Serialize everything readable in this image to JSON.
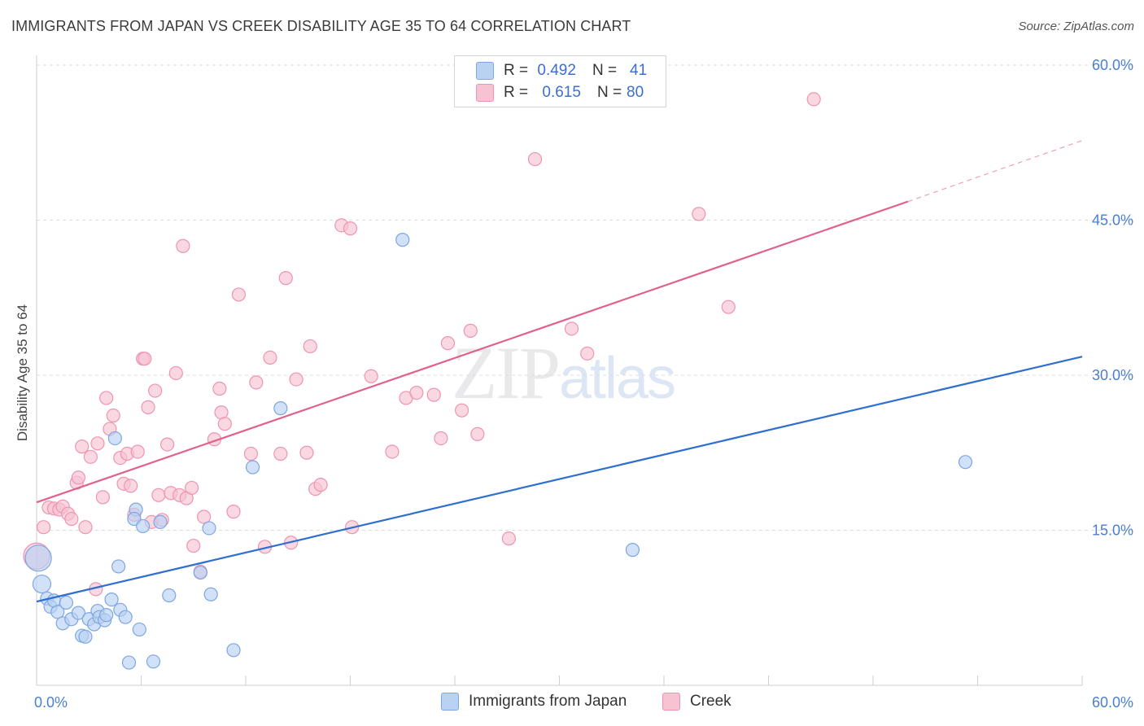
{
  "title": "IMMIGRANTS FROM JAPAN VS CREEK DISABILITY AGE 35 TO 64 CORRELATION CHART",
  "source": "Source: ZipAtlas.com",
  "watermark": {
    "zip": "ZIP",
    "atlas": "atlas"
  },
  "legend": {
    "rows": [
      {
        "r_label": "R =",
        "r_value": "0.492",
        "n_label": "N =",
        "n_value": "41"
      },
      {
        "r_label": "R =",
        "r_value": "0.615",
        "n_label": "N =",
        "n_value": "80"
      }
    ]
  },
  "bottom_legend": [
    {
      "label": "Immigrants from Japan"
    },
    {
      "label": "Creek"
    }
  ],
  "colors": {
    "japan_fill": "#b9d1f3",
    "japan_stroke": "#7ea6e0",
    "japan_line": "#2f6fd0",
    "creek_fill": "#f7c3d2",
    "creek_stroke": "#ee94b1",
    "creek_line": "#e0628c",
    "grid": "#dcdcdc",
    "tick_text": "#4a7fd0"
  },
  "chart_data": {
    "type": "scatter",
    "title": "IMMIGRANTS FROM JAPAN VS CREEK DISABILITY AGE 35 TO 64 CORRELATION CHART",
    "xlabel": "",
    "ylabel": "Disability Age 35 to 64",
    "xlim": [
      0,
      60
    ],
    "ylim": [
      0,
      60
    ],
    "x_tick_labels": [
      "0.0%",
      "60.0%"
    ],
    "y_tick_values": [
      15,
      30,
      45,
      60
    ],
    "y_tick_labels": [
      "15.0%",
      "30.0%",
      "45.0%",
      "60.0%"
    ],
    "series": [
      {
        "name": "Immigrants from Japan",
        "r": 0.492,
        "n": 41,
        "trend": {
          "x0": 0,
          "y0": 8.1,
          "x1": 60,
          "y1": 31.8
        },
        "points": [
          [
            0.1,
            12.3,
            3
          ],
          [
            0.3,
            9.8,
            2
          ],
          [
            0.6,
            8.4,
            1
          ],
          [
            0.8,
            7.6,
            1
          ],
          [
            1.0,
            8.2,
            1
          ],
          [
            1.2,
            7.1,
            1
          ],
          [
            1.5,
            6.0,
            1
          ],
          [
            1.7,
            8.0,
            1
          ],
          [
            2.0,
            6.4,
            1
          ],
          [
            2.4,
            7.0,
            1
          ],
          [
            2.6,
            4.8,
            1
          ],
          [
            2.8,
            4.7,
            1
          ],
          [
            3.0,
            6.4,
            1
          ],
          [
            3.3,
            5.9,
            1
          ],
          [
            3.5,
            7.2,
            1
          ],
          [
            3.6,
            6.6,
            1
          ],
          [
            3.9,
            6.3,
            1
          ],
          [
            4.0,
            6.8,
            1
          ],
          [
            4.3,
            8.3,
            1
          ],
          [
            4.5,
            23.9,
            1
          ],
          [
            4.7,
            11.5,
            1
          ],
          [
            4.8,
            7.3,
            1
          ],
          [
            5.1,
            6.6,
            1
          ],
          [
            5.3,
            2.2,
            1
          ],
          [
            5.7,
            17.0,
            1
          ],
          [
            5.6,
            16.1,
            1
          ],
          [
            5.9,
            5.4,
            1
          ],
          [
            6.1,
            15.4,
            1
          ],
          [
            6.7,
            2.3,
            1
          ],
          [
            7.1,
            15.8,
            1
          ],
          [
            7.6,
            8.7,
            1
          ],
          [
            9.4,
            10.9,
            1
          ],
          [
            9.9,
            15.2,
            1
          ],
          [
            10.0,
            8.8,
            1
          ],
          [
            11.3,
            3.4,
            1
          ],
          [
            12.4,
            21.1,
            1
          ],
          [
            14.0,
            26.8,
            1
          ],
          [
            21.0,
            43.1,
            1
          ],
          [
            34.2,
            13.1,
            1
          ],
          [
            53.3,
            21.6,
            1
          ]
        ]
      },
      {
        "name": "Creek",
        "r": 0.615,
        "n": 80,
        "trend": {
          "x0": 0,
          "y0": 17.7,
          "x1": 50,
          "y1": 46.8,
          "dash_x1": 60,
          "dash_y1": 52.7
        },
        "points": [
          [
            0.0,
            12.5,
            3
          ],
          [
            0.4,
            15.3,
            1
          ],
          [
            0.7,
            17.2,
            1
          ],
          [
            1.0,
            17.1,
            1
          ],
          [
            1.3,
            17.0,
            1
          ],
          [
            1.5,
            17.3,
            1
          ],
          [
            1.8,
            16.6,
            1
          ],
          [
            2.0,
            16.1,
            1
          ],
          [
            2.3,
            19.6,
            1
          ],
          [
            2.4,
            20.1,
            1
          ],
          [
            2.6,
            23.1,
            1
          ],
          [
            2.8,
            15.3,
            1
          ],
          [
            3.1,
            22.1,
            1
          ],
          [
            3.4,
            9.3,
            1
          ],
          [
            3.5,
            23.4,
            1
          ],
          [
            3.8,
            18.2,
            1
          ],
          [
            4.0,
            27.8,
            1
          ],
          [
            4.2,
            24.8,
            1
          ],
          [
            4.4,
            26.1,
            1
          ],
          [
            4.8,
            22.0,
            1
          ],
          [
            5.0,
            19.5,
            1
          ],
          [
            5.2,
            22.4,
            1
          ],
          [
            5.4,
            19.3,
            1
          ],
          [
            5.6,
            16.5,
            1
          ],
          [
            5.8,
            22.6,
            1
          ],
          [
            6.1,
            31.6,
            1
          ],
          [
            6.2,
            31.6,
            1
          ],
          [
            6.4,
            26.9,
            1
          ],
          [
            6.6,
            15.8,
            1
          ],
          [
            6.8,
            28.5,
            1
          ],
          [
            7.0,
            18.4,
            1
          ],
          [
            7.2,
            16.0,
            1
          ],
          [
            7.5,
            23.3,
            1
          ],
          [
            7.7,
            18.6,
            1
          ],
          [
            8.0,
            30.2,
            1
          ],
          [
            8.2,
            18.4,
            1
          ],
          [
            8.4,
            42.5,
            1
          ],
          [
            8.6,
            18.1,
            1
          ],
          [
            8.9,
            19.1,
            1
          ],
          [
            9.0,
            13.5,
            1
          ],
          [
            9.4,
            11.0,
            1
          ],
          [
            9.6,
            16.3,
            1
          ],
          [
            10.2,
            23.8,
            1
          ],
          [
            10.5,
            28.7,
            1
          ],
          [
            10.6,
            26.4,
            1
          ],
          [
            10.8,
            25.3,
            1
          ],
          [
            11.3,
            16.8,
            1
          ],
          [
            11.6,
            37.8,
            1
          ],
          [
            12.3,
            22.4,
            1
          ],
          [
            12.6,
            29.3,
            1
          ],
          [
            13.1,
            13.4,
            1
          ],
          [
            13.4,
            31.7,
            1
          ],
          [
            14.0,
            22.4,
            1
          ],
          [
            14.3,
            39.4,
            1
          ],
          [
            14.6,
            13.8,
            1
          ],
          [
            14.9,
            29.6,
            1
          ],
          [
            15.5,
            22.5,
            1
          ],
          [
            15.7,
            32.8,
            1
          ],
          [
            16.0,
            19.0,
            1
          ],
          [
            16.3,
            19.4,
            1
          ],
          [
            17.5,
            44.5,
            1
          ],
          [
            18.0,
            44.2,
            1
          ],
          [
            18.1,
            15.3,
            1
          ],
          [
            19.2,
            29.9,
            1
          ],
          [
            20.4,
            22.6,
            1
          ],
          [
            21.2,
            27.8,
            1
          ],
          [
            21.8,
            28.3,
            1
          ],
          [
            22.8,
            28.1,
            1
          ],
          [
            23.2,
            23.9,
            1
          ],
          [
            23.6,
            33.1,
            1
          ],
          [
            24.4,
            26.6,
            1
          ],
          [
            24.9,
            34.3,
            1
          ],
          [
            25.3,
            24.3,
            1
          ],
          [
            27.1,
            14.2,
            1
          ],
          [
            28.6,
            50.9,
            1
          ],
          [
            30.7,
            34.5,
            1
          ],
          [
            31.6,
            32.1,
            1
          ],
          [
            38.0,
            45.6,
            1
          ],
          [
            39.7,
            36.6,
            1
          ],
          [
            44.6,
            56.7,
            1
          ]
        ]
      }
    ]
  }
}
